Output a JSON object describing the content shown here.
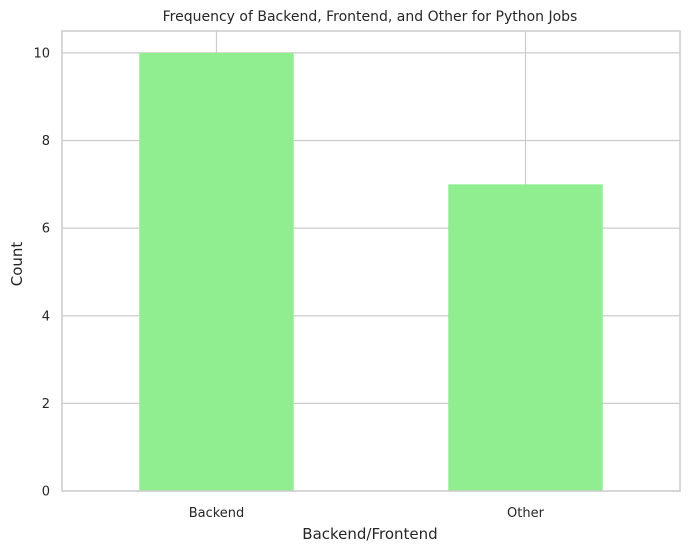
{
  "chart_data": {
    "type": "bar",
    "title": "Frequency of Backend, Frontend, and Other for Python Jobs",
    "xlabel": "Backend/Frontend",
    "ylabel": "Count",
    "categories": [
      "Backend",
      "Other"
    ],
    "values": [
      10,
      7
    ],
    "ylim": [
      0,
      10.5
    ],
    "yticks": [
      0,
      2,
      4,
      6,
      8,
      10
    ],
    "grid": true,
    "legend": "none",
    "colors": {
      "bar": "#90EE90",
      "grid": "#cccccc",
      "spine": "#cccccc",
      "background": "#ffffff"
    }
  }
}
